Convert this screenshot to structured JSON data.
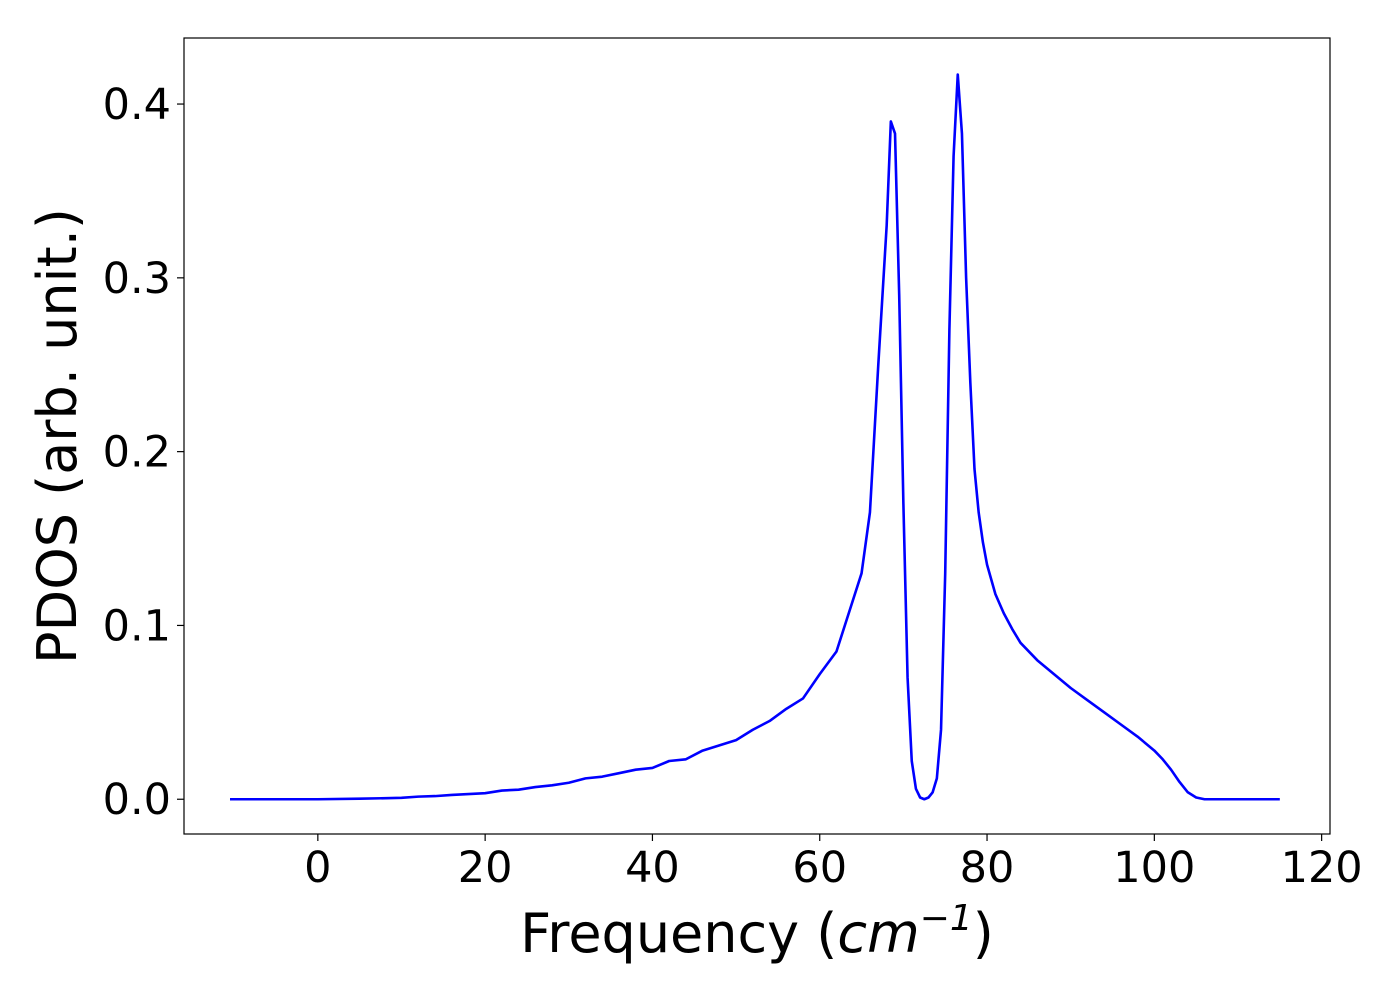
{
  "chart_data": {
    "type": "line",
    "title": "",
    "xlabel": "Frequency",
    "xlabel_unit_base": "cm",
    "xlabel_unit_exp": "−1",
    "ylabel": "PDOS (arb. unit.)",
    "xlim": [
      -16,
      121
    ],
    "ylim": [
      -0.02,
      0.438
    ],
    "x_ticks": [
      0,
      20,
      40,
      60,
      80,
      100,
      120
    ],
    "y_ticks": [
      0.0,
      0.1,
      0.2,
      0.3,
      0.4
    ],
    "x_tick_labels": [
      "0",
      "20",
      "40",
      "60",
      "80",
      "100",
      "120"
    ],
    "y_tick_labels": [
      "0.0",
      "0.1",
      "0.2",
      "0.3",
      "0.4"
    ],
    "grid": false,
    "legend": "none",
    "series": [
      {
        "color": "#0000ff",
        "x": [
          -10.5,
          0,
          5,
          10,
          12,
          14,
          16,
          20,
          22,
          24,
          26,
          28,
          30,
          32,
          34,
          36,
          38,
          40,
          42,
          44,
          46,
          48,
          50,
          52,
          54,
          56,
          58,
          60,
          62,
          64,
          65,
          66,
          67,
          68,
          68.5,
          69,
          69.5,
          70,
          70.5,
          71,
          71.5,
          72,
          72.5,
          73,
          73.5,
          74,
          74.5,
          75,
          75.5,
          76,
          76.5,
          77,
          77.5,
          78,
          78.5,
          79,
          79.5,
          80,
          81,
          82,
          83,
          84,
          86,
          88,
          90,
          92,
          94,
          96,
          98,
          100,
          101,
          102,
          103,
          104,
          105,
          106,
          108,
          110,
          115
        ],
        "y": [
          0.0,
          0.0,
          0.0003,
          0.0008,
          0.0015,
          0.0018,
          0.0025,
          0.0035,
          0.005,
          0.0055,
          0.007,
          0.008,
          0.0095,
          0.012,
          0.013,
          0.015,
          0.017,
          0.018,
          0.022,
          0.023,
          0.028,
          0.031,
          0.034,
          0.04,
          0.045,
          0.052,
          0.058,
          0.072,
          0.085,
          0.115,
          0.13,
          0.165,
          0.25,
          0.33,
          0.39,
          0.383,
          0.29,
          0.17,
          0.07,
          0.022,
          0.006,
          0.001,
          0.0,
          0.001,
          0.004,
          0.012,
          0.04,
          0.13,
          0.27,
          0.37,
          0.417,
          0.383,
          0.3,
          0.24,
          0.19,
          0.165,
          0.148,
          0.135,
          0.118,
          0.107,
          0.098,
          0.09,
          0.08,
          0.072,
          0.064,
          0.057,
          0.05,
          0.043,
          0.036,
          0.028,
          0.023,
          0.017,
          0.01,
          0.004,
          0.001,
          0.0,
          0.0,
          0.0,
          0.0
        ]
      }
    ]
  }
}
